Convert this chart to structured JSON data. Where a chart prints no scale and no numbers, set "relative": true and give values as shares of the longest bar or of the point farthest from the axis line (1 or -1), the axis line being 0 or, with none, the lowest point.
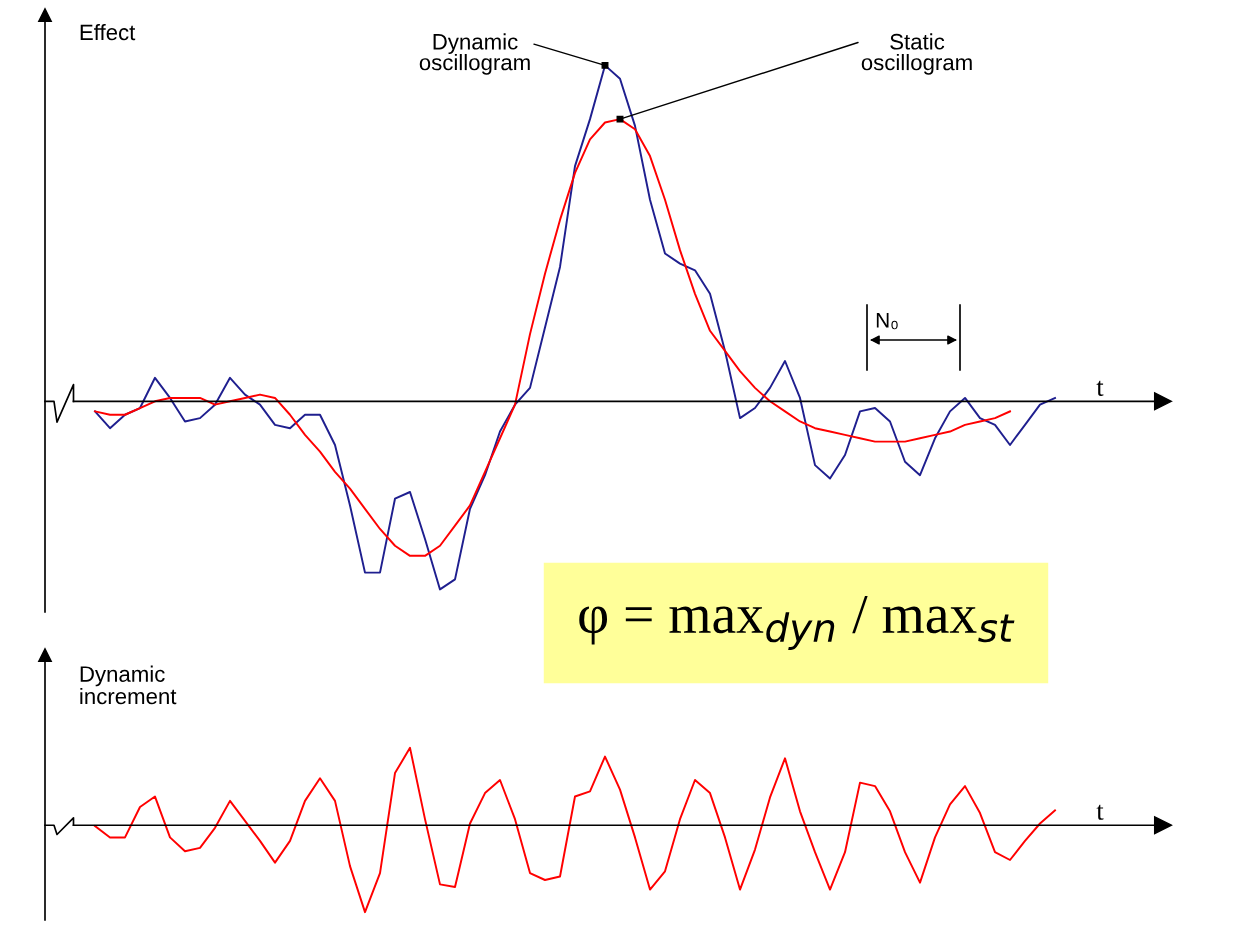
{
  "chart_data": [
    {
      "type": "line",
      "relative": true,
      "ylabel": "Effect",
      "xlabel": "t",
      "categories": [
        null,
        null,
        null,
        null,
        null,
        null,
        null,
        null,
        null,
        null,
        null,
        null,
        null,
        null,
        null,
        null,
        null,
        null,
        null,
        null,
        null,
        null,
        null,
        null,
        null,
        null,
        null,
        null,
        null,
        null,
        null,
        null,
        null,
        null,
        null,
        null,
        null,
        null,
        null,
        null,
        null,
        null,
        null,
        null,
        null,
        null,
        null,
        null,
        null,
        null,
        null,
        null,
        null,
        null,
        null,
        null,
        null,
        null,
        null,
        null,
        null,
        null,
        null,
        null,
        null
      ],
      "series": [
        {
          "name": "Dynamic\noscillogram",
          "color": "#1f1f8f",
          "values": [
            -0.03,
            -0.08,
            -0.04,
            -0.02,
            0.07,
            0.01,
            -0.06,
            -0.05,
            -0.01,
            0.07,
            0.02,
            -0.01,
            -0.07,
            -0.08,
            -0.04,
            -0.04,
            -0.13,
            -0.31,
            -0.51,
            -0.51,
            -0.29,
            -0.27,
            -0.41,
            -0.56,
            -0.53,
            -0.32,
            -0.22,
            -0.09,
            -0.01,
            0.04,
            0.22,
            0.4,
            0.7,
            0.84,
            1.0,
            0.96,
            0.82,
            0.6,
            0.44,
            0.41,
            0.39,
            0.32,
            0.15,
            -0.05,
            -0.02,
            0.04,
            0.12,
            0.01,
            -0.19,
            -0.23,
            -0.16,
            -0.03,
            -0.02,
            -0.06,
            -0.18,
            -0.22,
            -0.11,
            -0.03,
            0.01,
            -0.05,
            -0.07,
            -0.13,
            -0.07,
            -0.01,
            0.01
          ]
        },
        {
          "name": "Static\noscillogram",
          "color": "#ff0000",
          "values": [
            -0.03,
            -0.04,
            -0.04,
            -0.02,
            0.0,
            0.01,
            0.01,
            0.01,
            -0.01,
            0.0,
            0.01,
            0.02,
            0.01,
            -0.04,
            -0.1,
            -0.15,
            -0.21,
            -0.26,
            -0.32,
            -0.38,
            -0.43,
            -0.46,
            -0.46,
            -0.43,
            -0.37,
            -0.31,
            -0.21,
            -0.11,
            -0.01,
            0.2,
            0.38,
            0.54,
            0.68,
            0.78,
            0.83,
            0.84,
            0.81,
            0.73,
            0.6,
            0.45,
            0.32,
            0.21,
            0.15,
            0.09,
            0.04,
            0.0,
            -0.03,
            -0.06,
            -0.08,
            -0.09,
            -0.1,
            -0.11,
            -0.12,
            -0.12,
            -0.12,
            -0.11,
            -0.1,
            -0.09,
            -0.07,
            -0.06,
            -0.05,
            -0.03,
            null,
            null,
            null
          ]
        }
      ],
      "annotations": [
        "N₀",
        "φ = max$_{dyn}$ / max$_{st}$"
      ]
    },
    {
      "type": "line",
      "relative": true,
      "ylabel": "Dynamic\nincrement",
      "xlabel": "t",
      "categories": [
        null,
        null,
        null,
        null,
        null,
        null,
        null,
        null,
        null,
        null,
        null,
        null,
        null,
        null,
        null,
        null,
        null,
        null,
        null,
        null,
        null,
        null,
        null,
        null,
        null,
        null,
        null,
        null,
        null,
        null,
        null,
        null,
        null,
        null,
        null,
        null,
        null,
        null,
        null,
        null,
        null,
        null,
        null,
        null,
        null,
        null,
        null,
        null,
        null,
        null,
        null,
        null,
        null,
        null,
        null,
        null,
        null,
        null,
        null,
        null,
        null,
        null,
        null,
        null,
        null
      ],
      "series": [
        {
          "color": "#ff0000",
          "values": [
            -0.01,
            -0.14,
            -0.14,
            0.21,
            0.33,
            -0.14,
            -0.3,
            -0.26,
            -0.03,
            0.28,
            0.05,
            -0.18,
            -0.43,
            -0.18,
            0.28,
            0.54,
            0.28,
            -0.47,
            -1.0,
            -0.55,
            0.6,
            0.89,
            0.07,
            -0.68,
            -0.71,
            0.02,
            0.37,
            0.52,
            0.07,
            -0.55,
            -0.63,
            -0.59,
            0.33,
            0.39,
            0.79,
            0.41,
            -0.14,
            -0.74,
            -0.53,
            0.07,
            0.52,
            0.37,
            -0.14,
            -0.74,
            -0.28,
            0.32,
            0.77,
            0.16,
            -0.31,
            -0.74,
            -0.31,
            0.49,
            0.45,
            0.16,
            -0.31,
            -0.66,
            -0.14,
            0.24,
            0.45,
            0.14,
            -0.31,
            -0.4,
            -0.18,
            0.02,
            0.17
          ]
        }
      ]
    }
  ]
}
